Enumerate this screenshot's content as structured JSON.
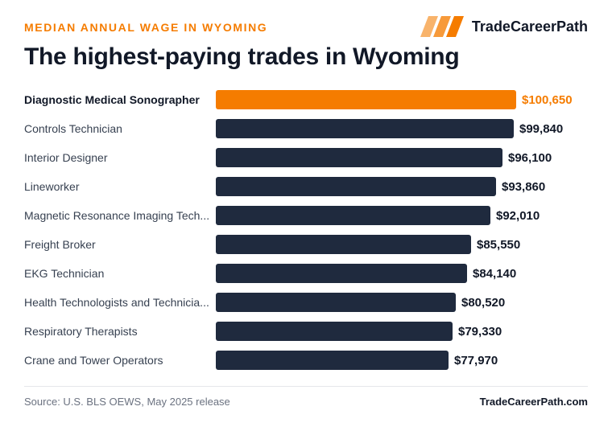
{
  "header": {
    "kicker": "MEDIAN ANNUAL WAGE IN WYOMING",
    "brand": "TradeCareerPath",
    "title": "The highest-paying trades in Wyoming"
  },
  "colors": {
    "highlight": "#f57c00",
    "bar": "#1f2a3e",
    "label": "#374151",
    "value": "#111827"
  },
  "chart_data": {
    "type": "bar",
    "orientation": "horizontal",
    "categories": [
      "Diagnostic Medical Sonographer",
      "Controls Technician",
      "Interior Designer",
      "Lineworker",
      "Magnetic Resonance Imaging Tech...",
      "Freight Broker",
      "EKG Technician",
      "Health Technologists and Technicia...",
      "Respiratory Therapists",
      "Crane and Tower Operators"
    ],
    "values": [
      100650,
      99840,
      96100,
      93860,
      92010,
      85550,
      84140,
      80520,
      79330,
      77970
    ],
    "value_labels": [
      "$100,650",
      "$99,840",
      "$96,100",
      "$93,860",
      "$92,010",
      "$85,550",
      "$84,140",
      "$80,520",
      "$79,330",
      "$77,970"
    ],
    "highlighted_index": 0,
    "xlim": [
      0,
      100650
    ],
    "grid": false,
    "legend": "none"
  },
  "footer": {
    "source": "Source: U.S. BLS OEWS, May 2025 release",
    "site": "TradeCareerPath.com"
  }
}
